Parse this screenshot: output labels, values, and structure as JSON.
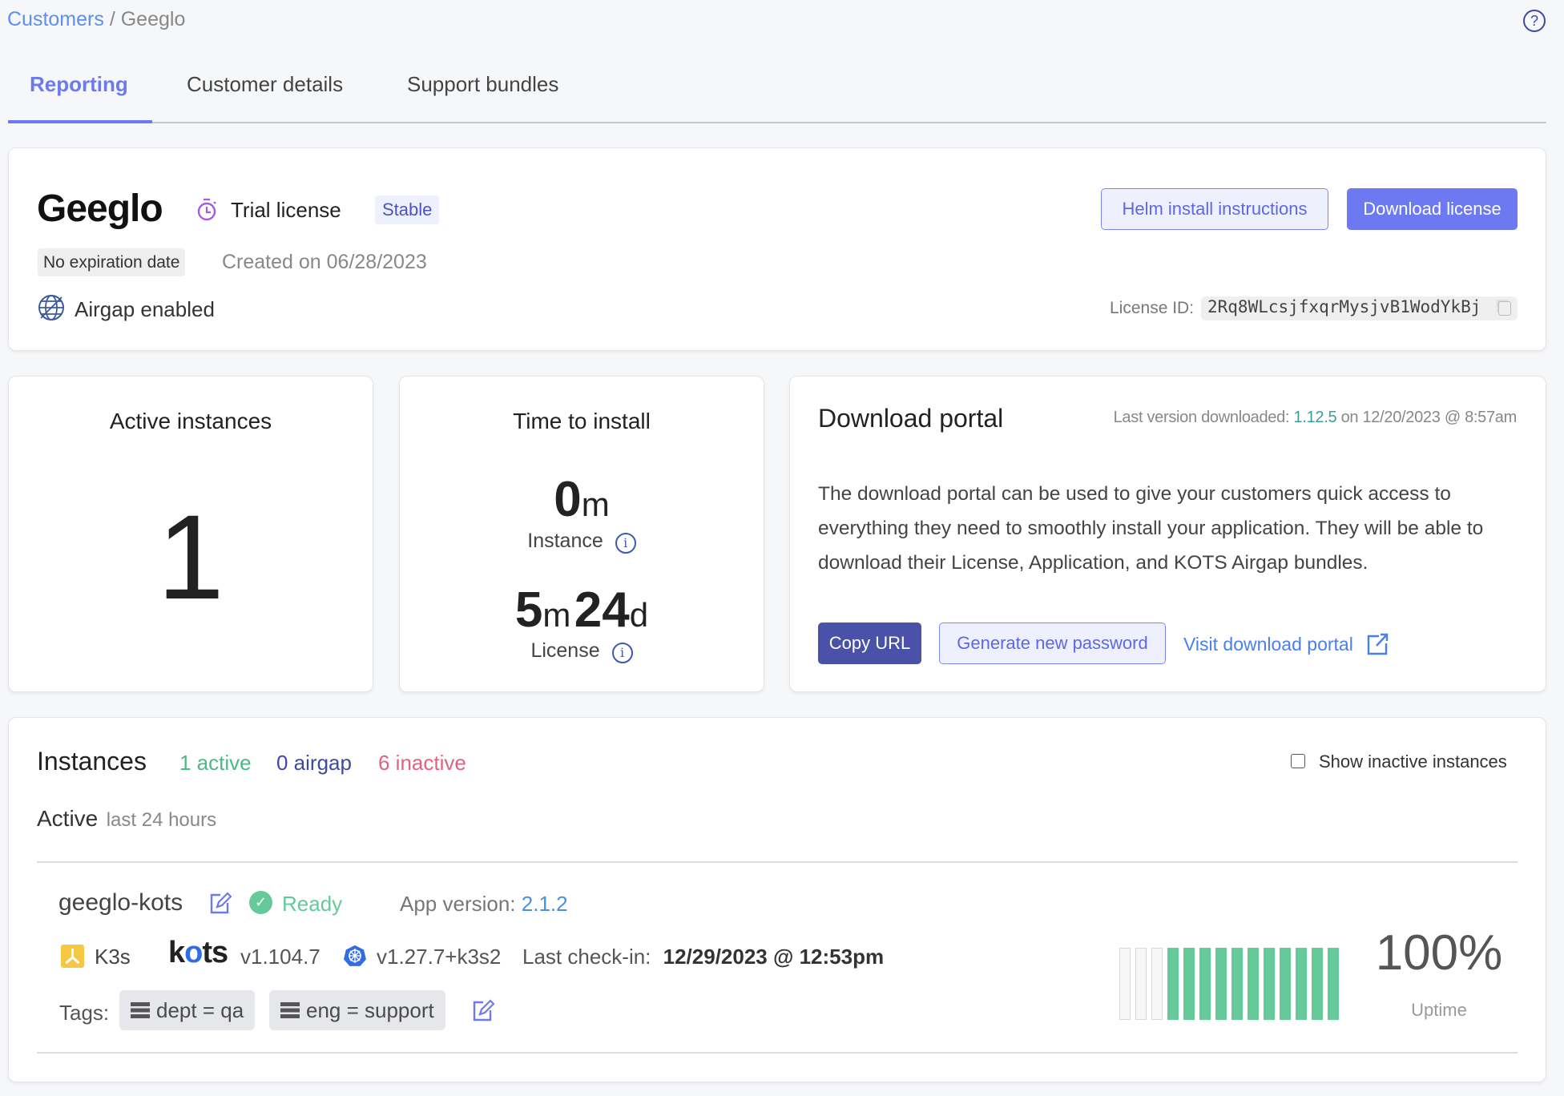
{
  "breadcrumb": {
    "parent": "Customers",
    "separator": "/",
    "current": "Geeglo"
  },
  "tabs": [
    {
      "label": "Reporting",
      "active": true
    },
    {
      "label": "Customer details",
      "active": false
    },
    {
      "label": "Support bundles",
      "active": false
    }
  ],
  "header_card": {
    "customer_name": "Geeglo",
    "license_type": "Trial license",
    "channel": "Stable",
    "expiration": "No expiration date",
    "created": "Created on 06/28/2023",
    "airgap": "Airgap enabled",
    "helm_button": "Helm install instructions",
    "download_button": "Download license",
    "license_id_label": "License ID:",
    "license_id": "2Rq8WLcsjfxqrMysjvB1WodYkBj"
  },
  "active_instances": {
    "title": "Active instances",
    "value": "1"
  },
  "time_to_install": {
    "title": "Time to install",
    "instance": {
      "value1": "0",
      "unit1": "m",
      "label": "Instance"
    },
    "license": {
      "value1": "5",
      "unit1": "m",
      "value2": "24",
      "unit2": "d",
      "label": "License"
    }
  },
  "download_portal": {
    "title": "Download portal",
    "last_prefix": "Last version downloaded:",
    "last_version": "1.12.5",
    "last_suffix": "on 12/20/2023 @ 8:57am",
    "description": "The download portal can be used to give your customers quick access to everything they need to smoothly install your application. They will be able to download their License, Application, and KOTS Airgap bundles.",
    "copy_url": "Copy URL",
    "generate_password": "Generate new password",
    "visit_portal": "Visit download portal"
  },
  "instances": {
    "title": "Instances",
    "active_count": "1 active",
    "airgap_count": "0 airgap",
    "inactive_count": "6 inactive",
    "show_inactive_label": "Show inactive instances",
    "show_inactive_checked": false,
    "section_label": "Active",
    "section_sub": "last 24 hours",
    "items": [
      {
        "name": "geeglo-kots",
        "status": "Ready",
        "app_version_label": "App version:",
        "app_version": "2.1.2",
        "distribution": "K3s",
        "kots_logo": "kots",
        "kots_version": "v1.104.7",
        "k8s_version": "v1.27.7+k3s2",
        "checkin_label": "Last check-in:",
        "checkin": "12/29/2023 @ 12:53pm",
        "tags_label": "Tags:",
        "tags": [
          "dept = qa",
          "eng = support"
        ],
        "uptime": "100%",
        "uptime_label": "Uptime",
        "uptime_bars": [
          "none",
          "none",
          "none",
          "up",
          "up",
          "up",
          "up",
          "up",
          "up",
          "up",
          "up",
          "up",
          "up",
          "up"
        ]
      }
    ]
  },
  "colors": {
    "accent": "#6c79f1",
    "dark_accent": "#4a51a8",
    "green": "#65c999",
    "red": "#e06283",
    "navy": "#3d4a9e",
    "teal": "#3b9e9a",
    "link": "#4a90e2"
  }
}
